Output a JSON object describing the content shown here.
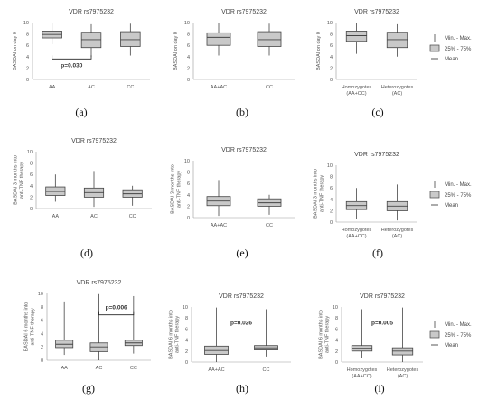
{
  "legend": {
    "minmax": "Min. - Max.",
    "iqr": "25% - 75%",
    "mean": "Mean"
  },
  "colors": {
    "box": "#c9c9c9",
    "line": "#444444"
  },
  "chart_data": [
    {
      "id": "a",
      "letter": "(a)",
      "type": "boxplot",
      "title": "VDR rs7975232",
      "ylabel": "BASDAI on day 0",
      "ylim": [
        0,
        10
      ],
      "yticks": [
        0,
        2,
        4,
        6,
        8,
        10
      ],
      "categories": [
        "AA",
        "AC",
        "CC"
      ],
      "boxes": [
        {
          "min": 6.2,
          "q1": 7.3,
          "mean": 7.9,
          "q3": 8.5,
          "max": 9.9
        },
        {
          "min": 4.0,
          "q1": 5.6,
          "mean": 7.0,
          "q3": 8.3,
          "max": 9.7
        },
        {
          "min": 4.2,
          "q1": 5.8,
          "mean": 7.0,
          "q3": 8.4,
          "max": 9.8
        }
      ],
      "annotation": {
        "text": "p=0.030",
        "from": 0,
        "to": 1,
        "y": 3.6
      }
    },
    {
      "id": "b",
      "letter": "(b)",
      "type": "boxplot",
      "title": "VDR rs7975232",
      "ylabel": "BASDAI on day 0",
      "ylim": [
        0,
        10
      ],
      "yticks": [
        0,
        2,
        4,
        6,
        8,
        10
      ],
      "categories": [
        "AA+AC",
        "CC"
      ],
      "boxes": [
        {
          "min": 4.2,
          "q1": 6.0,
          "mean": 7.4,
          "q3": 8.2,
          "max": 9.9
        },
        {
          "min": 4.2,
          "q1": 5.8,
          "mean": 7.0,
          "q3": 8.4,
          "max": 9.8
        }
      ]
    },
    {
      "id": "c",
      "letter": "(c)",
      "type": "boxplot",
      "title": "VDR rs7975232",
      "ylabel": "BASDAI on day 0",
      "ylim": [
        0,
        10
      ],
      "yticks": [
        0,
        2,
        4,
        6,
        8,
        10
      ],
      "categories": [
        "Homozygotes\n(AA+CC)",
        "Heterozygotes\n(AC)"
      ],
      "boxes": [
        {
          "min": 4.5,
          "q1": 6.7,
          "mean": 7.7,
          "q3": 8.5,
          "max": 9.9
        },
        {
          "min": 4.0,
          "q1": 5.6,
          "mean": 7.0,
          "q3": 8.3,
          "max": 9.7
        }
      ]
    },
    {
      "id": "d",
      "letter": "(d)",
      "type": "boxplot",
      "title": "VDR rs7975232",
      "ylabel": "BASDAI 3 months into\nanti-TNF therapy",
      "ylim": [
        0,
        10
      ],
      "yticks": [
        0,
        2,
        4,
        6,
        8,
        10
      ],
      "categories": [
        "AA",
        "AC",
        "CC"
      ],
      "boxes": [
        {
          "min": 1.2,
          "q1": 2.3,
          "mean": 3.0,
          "q3": 3.8,
          "max": 6.0
        },
        {
          "min": 0.3,
          "q1": 2.0,
          "mean": 2.8,
          "q3": 3.6,
          "max": 6.6
        },
        {
          "min": 0.5,
          "q1": 2.0,
          "mean": 2.6,
          "q3": 3.3,
          "max": 4.0
        }
      ]
    },
    {
      "id": "e",
      "letter": "(e)",
      "type": "boxplot",
      "title": "VDR rs7975232",
      "ylabel": "BASDAI 3 months into\nanti-TNF therapy",
      "ylim": [
        0,
        10
      ],
      "yticks": [
        0,
        2,
        4,
        6,
        8,
        10
      ],
      "categories": [
        "AA+AC",
        "CC"
      ],
      "boxes": [
        {
          "min": 0.3,
          "q1": 2.1,
          "mean": 2.9,
          "q3": 3.7,
          "max": 6.6
        },
        {
          "min": 0.5,
          "q1": 2.0,
          "mean": 2.6,
          "q3": 3.3,
          "max": 4.0
        }
      ]
    },
    {
      "id": "f",
      "letter": "(f)",
      "type": "boxplot",
      "title": "VDR rs7975232",
      "ylabel": "BASDAI 3 months into\nanti-TNF therapy",
      "ylim": [
        0,
        10
      ],
      "yticks": [
        0,
        2,
        4,
        6,
        8,
        10
      ],
      "categories": [
        "Homozygotes\n(AA+CC)",
        "Heterozygotes\n(AC)"
      ],
      "boxes": [
        {
          "min": 0.5,
          "q1": 2.2,
          "mean": 2.9,
          "q3": 3.6,
          "max": 6.0
        },
        {
          "min": 0.3,
          "q1": 2.0,
          "mean": 2.8,
          "q3": 3.6,
          "max": 6.6
        }
      ]
    },
    {
      "id": "g",
      "letter": "(g)",
      "type": "boxplot",
      "title": "VDR rs7975232",
      "ylabel": "BASDAI 6 months into\nanti-TNF therapy",
      "ylim": [
        0,
        10
      ],
      "yticks": [
        0,
        2,
        4,
        6,
        8,
        10
      ],
      "categories": [
        "AA",
        "AC",
        "CC"
      ],
      "boxes": [
        {
          "min": 0.8,
          "q1": 1.9,
          "mean": 2.4,
          "q3": 3.0,
          "max": 8.8
        },
        {
          "min": 0.0,
          "q1": 1.3,
          "mean": 2.0,
          "q3": 2.6,
          "max": 9.9
        },
        {
          "min": 1.0,
          "q1": 2.2,
          "mean": 2.6,
          "q3": 3.0,
          "max": 9.6
        }
      ],
      "annotation": {
        "text": "p=0.006",
        "from": 1,
        "to": 2,
        "y": 6.8
      }
    },
    {
      "id": "h",
      "letter": "(h)",
      "type": "boxplot",
      "title": "VDR rs7975232",
      "ylabel": "BASDAI 6 months into\nanti-TNF therapy",
      "ylim": [
        0,
        10
      ],
      "yticks": [
        0,
        2,
        4,
        6,
        8,
        10
      ],
      "categories": [
        "AA+AC",
        "CC"
      ],
      "boxes": [
        {
          "min": 0.0,
          "q1": 1.4,
          "mean": 2.1,
          "q3": 2.9,
          "max": 9.9
        },
        {
          "min": 1.0,
          "q1": 2.2,
          "mean": 2.6,
          "q3": 3.0,
          "max": 9.6
        }
      ],
      "annotation": {
        "text": "p=0.026",
        "x": 0.5,
        "y": 6.8
      }
    },
    {
      "id": "i",
      "letter": "(i)",
      "type": "boxplot",
      "title": "VDR rs7975232",
      "ylabel": "BASDAI 6 months into\nanti-TNF therapy",
      "ylim": [
        0,
        10
      ],
      "yticks": [
        0,
        2,
        4,
        6,
        8,
        10
      ],
      "categories": [
        "Homozygotes\n(AA+CC)",
        "Heterozygotes\n(AC)"
      ],
      "boxes": [
        {
          "min": 0.8,
          "q1": 2.0,
          "mean": 2.5,
          "q3": 3.0,
          "max": 9.6
        },
        {
          "min": 0.0,
          "q1": 1.3,
          "mean": 2.0,
          "q3": 2.6,
          "max": 9.9
        }
      ],
      "annotation": {
        "text": "p=0.005",
        "x": 0.5,
        "y": 6.8
      }
    }
  ]
}
